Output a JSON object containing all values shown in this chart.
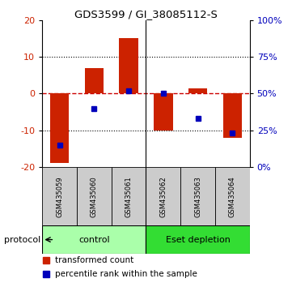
{
  "title": "GDS3599 / GI_38085112-S",
  "samples": [
    "GSM435059",
    "GSM435060",
    "GSM435061",
    "GSM435062",
    "GSM435063",
    "GSM435064"
  ],
  "transformed_counts": [
    -19,
    7,
    15,
    -10,
    1.5,
    -12
  ],
  "percentile_ranks": [
    15,
    40,
    52,
    50,
    33,
    23
  ],
  "ylim_left": [
    -20,
    20
  ],
  "ylim_right": [
    0,
    100
  ],
  "yticks_left": [
    -20,
    -10,
    0,
    10,
    20
  ],
  "yticks_right": [
    0,
    25,
    50,
    75,
    100
  ],
  "bar_color": "#cc2200",
  "dot_color": "#0000bb",
  "dashed_line_color": "#cc0000",
  "group_control_color": "#aaffaa",
  "group_esetdep_color": "#33dd33",
  "sample_box_color": "#cccccc",
  "protocol_label": "protocol",
  "legend_bar_label": "transformed count",
  "legend_dot_label": "percentile rank within the sample",
  "tick_label_color_left": "#cc2200",
  "tick_label_color_right": "#0000bb",
  "bar_width": 0.55
}
